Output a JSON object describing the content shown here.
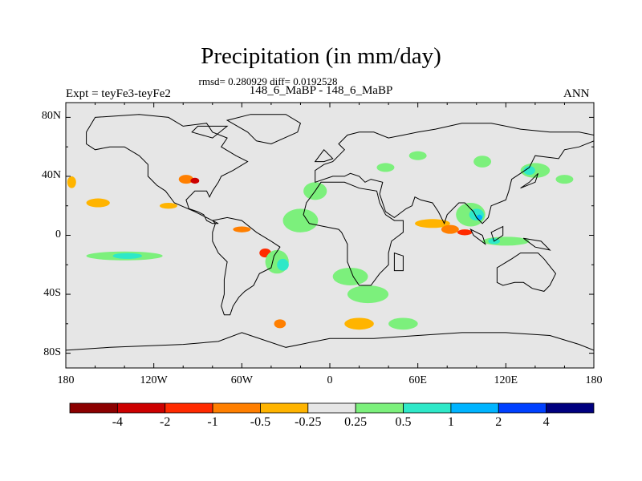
{
  "header": {
    "title": "Precipitation (in mm/day)",
    "stats": "rmsd= 0.280929 diff= 0.0192528",
    "case": "148_6_MaBP - 148_6_MaBP",
    "experiment": "Expt = teyFe3-teyFe2",
    "season": "ANN"
  },
  "chart_data": {
    "type": "heatmap",
    "title": "Precipitation (in mm/day)",
    "subtitle": "148_6_MaBP - 148_6_MaBP",
    "xlim": [
      -180,
      180
    ],
    "ylim": [
      -90,
      90
    ],
    "x_ticks": [
      {
        "value": -180,
        "label": "180"
      },
      {
        "value": -120,
        "label": "120W"
      },
      {
        "value": -60,
        "label": "60W"
      },
      {
        "value": 0,
        "label": "0"
      },
      {
        "value": 60,
        "label": "60E"
      },
      {
        "value": 120,
        "label": "120E"
      },
      {
        "value": 180,
        "label": "180"
      }
    ],
    "y_ticks": [
      {
        "value": 80,
        "label": "80N"
      },
      {
        "value": 40,
        "label": "40N"
      },
      {
        "value": 0,
        "label": "0"
      },
      {
        "value": -40,
        "label": "40S"
      },
      {
        "value": -80,
        "label": "80S"
      }
    ],
    "colorbar": {
      "levels": [
        "-4",
        "-2",
        "-1",
        "-0.5",
        "-0.25",
        "0.25",
        "0.5",
        "1",
        "2",
        "4"
      ],
      "colors": [
        "#8b0000",
        "#cc0000",
        "#ff2a00",
        "#ff7f00",
        "#ffb400",
        "#e6e6e6",
        "#7cf07c",
        "#2ee8c8",
        "#00b4ff",
        "#0040ff",
        "#00007f"
      ]
    },
    "background_color": "#e6e6e6",
    "anomaly_patches": [
      {
        "lon": -158,
        "lat": 22,
        "rx": 8,
        "ry": 3,
        "color": "#ffb400"
      },
      {
        "lon": -176,
        "lat": 36,
        "rx": 3,
        "ry": 4,
        "color": "#ffb400"
      },
      {
        "lon": -140,
        "lat": -14,
        "rx": 26,
        "ry": 3,
        "color": "#7cf07c"
      },
      {
        "lon": -138,
        "lat": -14,
        "rx": 10,
        "ry": 2,
        "color": "#2ee8c8"
      },
      {
        "lon": -98,
        "lat": 38,
        "rx": 5,
        "ry": 3,
        "color": "#ff7f00"
      },
      {
        "lon": -92,
        "lat": 37,
        "rx": 3,
        "ry": 2,
        "color": "#cc0000"
      },
      {
        "lon": -60,
        "lat": 4,
        "rx": 6,
        "ry": 2,
        "color": "#ff7f00"
      },
      {
        "lon": -44,
        "lat": -12,
        "rx": 4,
        "ry": 3,
        "color": "#ff2a00"
      },
      {
        "lon": -36,
        "lat": -18,
        "rx": 8,
        "ry": 8,
        "color": "#7cf07c"
      },
      {
        "lon": -32,
        "lat": -20,
        "rx": 4,
        "ry": 4,
        "color": "#2ee8c8"
      },
      {
        "lon": -20,
        "lat": 10,
        "rx": 12,
        "ry": 8,
        "color": "#7cf07c"
      },
      {
        "lon": -10,
        "lat": 30,
        "rx": 8,
        "ry": 6,
        "color": "#7cf07c"
      },
      {
        "lon": 14,
        "lat": -28,
        "rx": 12,
        "ry": 6,
        "color": "#7cf07c"
      },
      {
        "lon": 26,
        "lat": -40,
        "rx": 14,
        "ry": 6,
        "color": "#7cf07c"
      },
      {
        "lon": 20,
        "lat": -60,
        "rx": 10,
        "ry": 4,
        "color": "#ffb400"
      },
      {
        "lon": 50,
        "lat": -60,
        "rx": 10,
        "ry": 4,
        "color": "#7cf07c"
      },
      {
        "lon": 70,
        "lat": 8,
        "rx": 12,
        "ry": 3,
        "color": "#ffb400"
      },
      {
        "lon": 82,
        "lat": 4,
        "rx": 6,
        "ry": 3,
        "color": "#ff7f00"
      },
      {
        "lon": 92,
        "lat": 2,
        "rx": 5,
        "ry": 2,
        "color": "#ff2a00"
      },
      {
        "lon": 96,
        "lat": 14,
        "rx": 10,
        "ry": 8,
        "color": "#7cf07c"
      },
      {
        "lon": 100,
        "lat": 14,
        "rx": 5,
        "ry": 4,
        "color": "#2ee8c8"
      },
      {
        "lon": 102,
        "lat": 12,
        "rx": 2,
        "ry": 2,
        "color": "#00b4ff"
      },
      {
        "lon": 120,
        "lat": -4,
        "rx": 16,
        "ry": 3,
        "color": "#7cf07c"
      },
      {
        "lon": 112,
        "lat": -4,
        "rx": 4,
        "ry": 2,
        "color": "#2ee8c8"
      },
      {
        "lon": 140,
        "lat": 44,
        "rx": 10,
        "ry": 5,
        "color": "#7cf07c"
      },
      {
        "lon": 136,
        "lat": 44,
        "rx": 4,
        "ry": 3,
        "color": "#2ee8c8"
      },
      {
        "lon": 160,
        "lat": 38,
        "rx": 6,
        "ry": 3,
        "color": "#7cf07c"
      },
      {
        "lon": -34,
        "lat": -60,
        "rx": 4,
        "ry": 3,
        "color": "#ff7f00"
      },
      {
        "lon": 38,
        "lat": 46,
        "rx": 6,
        "ry": 3,
        "color": "#7cf07c"
      },
      {
        "lon": 60,
        "lat": 54,
        "rx": 6,
        "ry": 3,
        "color": "#7cf07c"
      },
      {
        "lon": 104,
        "lat": 50,
        "rx": 6,
        "ry": 4,
        "color": "#7cf07c"
      },
      {
        "lon": -110,
        "lat": 20,
        "rx": 6,
        "ry": 2,
        "color": "#ffb400"
      }
    ],
    "land_outlines": [
      [
        [
          -160,
          80
        ],
        [
          -130,
          82
        ],
        [
          -110,
          80
        ],
        [
          -100,
          74
        ],
        [
          -84,
          76
        ],
        [
          -80,
          70
        ],
        [
          -70,
          66
        ],
        [
          -74,
          60
        ],
        [
          -64,
          54
        ],
        [
          -56,
          50
        ],
        [
          -66,
          44
        ],
        [
          -74,
          40
        ],
        [
          -76,
          36
        ],
        [
          -80,
          30
        ],
        [
          -82,
          26
        ],
        [
          -84,
          30
        ],
        [
          -92,
          30
        ],
        [
          -98,
          24
        ],
        [
          -96,
          18
        ],
        [
          -90,
          16
        ],
        [
          -86,
          14
        ],
        [
          -84,
          10
        ],
        [
          -80,
          8
        ],
        [
          -76,
          8
        ],
        [
          -92,
          16
        ],
        [
          -106,
          22
        ],
        [
          -112,
          30
        ],
        [
          -118,
          34
        ],
        [
          -124,
          40
        ],
        [
          -124,
          48
        ],
        [
          -130,
          54
        ],
        [
          -140,
          60
        ],
        [
          -150,
          60
        ],
        [
          -160,
          58
        ],
        [
          -166,
          62
        ],
        [
          -166,
          70
        ],
        [
          -160,
          80
        ]
      ],
      [
        [
          -80,
          10
        ],
        [
          -70,
          12
        ],
        [
          -60,
          10
        ],
        [
          -50,
          2
        ],
        [
          -40,
          -4
        ],
        [
          -34,
          -8
        ],
        [
          -38,
          -14
        ],
        [
          -40,
          -22
        ],
        [
          -48,
          -26
        ],
        [
          -52,
          -34
        ],
        [
          -58,
          -38
        ],
        [
          -62,
          -42
        ],
        [
          -66,
          -48
        ],
        [
          -68,
          -54
        ],
        [
          -72,
          -54
        ],
        [
          -74,
          -48
        ],
        [
          -72,
          -40
        ],
        [
          -72,
          -30
        ],
        [
          -70,
          -18
        ],
        [
          -76,
          -12
        ],
        [
          -80,
          -4
        ],
        [
          -80,
          2
        ],
        [
          -78,
          8
        ],
        [
          -80,
          10
        ]
      ],
      [
        [
          -18,
          14
        ],
        [
          -16,
          22
        ],
        [
          -10,
          30
        ],
        [
          -6,
          36
        ],
        [
          10,
          36
        ],
        [
          20,
          32
        ],
        [
          32,
          30
        ],
        [
          34,
          22
        ],
        [
          38,
          14
        ],
        [
          44,
          10
        ],
        [
          50,
          10
        ],
        [
          50,
          2
        ],
        [
          42,
          -4
        ],
        [
          40,
          -12
        ],
        [
          40,
          -20
        ],
        [
          34,
          -26
        ],
        [
          28,
          -34
        ],
        [
          20,
          -34
        ],
        [
          16,
          -28
        ],
        [
          12,
          -18
        ],
        [
          12,
          -6
        ],
        [
          8,
          2
        ],
        [
          6,
          4
        ],
        [
          -4,
          6
        ],
        [
          -14,
          8
        ],
        [
          -18,
          14
        ]
      ],
      [
        [
          -10,
          36
        ],
        [
          -10,
          44
        ],
        [
          -4,
          48
        ],
        [
          2,
          50
        ],
        [
          6,
          54
        ],
        [
          10,
          58
        ],
        [
          6,
          62
        ],
        [
          12,
          68
        ],
        [
          20,
          70
        ],
        [
          30,
          70
        ],
        [
          40,
          66
        ],
        [
          50,
          68
        ],
        [
          60,
          70
        ],
        [
          72,
          72
        ],
        [
          90,
          76
        ],
        [
          110,
          76
        ],
        [
          130,
          72
        ],
        [
          150,
          70
        ],
        [
          170,
          70
        ],
        [
          180,
          68
        ],
        [
          180,
          64
        ],
        [
          170,
          60
        ],
        [
          160,
          58
        ],
        [
          156,
          52
        ],
        [
          140,
          54
        ],
        [
          136,
          46
        ],
        [
          130,
          42
        ],
        [
          124,
          38
        ],
        [
          122,
          30
        ],
        [
          120,
          24
        ],
        [
          110,
          20
        ],
        [
          108,
          12
        ],
        [
          104,
          8
        ],
        [
          100,
          12
        ],
        [
          98,
          16
        ],
        [
          92,
          22
        ],
        [
          88,
          22
        ],
        [
          80,
          14
        ],
        [
          78,
          8
        ],
        [
          74,
          16
        ],
        [
          70,
          22
        ],
        [
          62,
          24
        ],
        [
          58,
          26
        ],
        [
          56,
          20
        ],
        [
          52,
          18
        ],
        [
          44,
          12
        ],
        [
          38,
          16
        ],
        [
          34,
          28
        ],
        [
          36,
          36
        ],
        [
          28,
          38
        ],
        [
          24,
          36
        ],
        [
          20,
          40
        ],
        [
          14,
          42
        ],
        [
          10,
          40
        ],
        [
          2,
          40
        ],
        [
          -10,
          36
        ]
      ],
      [
        [
          114,
          -22
        ],
        [
          114,
          -32
        ],
        [
          118,
          -34
        ],
        [
          126,
          -32
        ],
        [
          132,
          -32
        ],
        [
          138,
          -36
        ],
        [
          146,
          -38
        ],
        [
          150,
          -34
        ],
        [
          154,
          -26
        ],
        [
          146,
          -16
        ],
        [
          142,
          -12
        ],
        [
          136,
          -12
        ],
        [
          130,
          -12
        ],
        [
          124,
          -16
        ],
        [
          114,
          -22
        ]
      ],
      [
        [
          -60,
          -66
        ],
        [
          -30,
          -76
        ],
        [
          0,
          -70
        ],
        [
          30,
          -70
        ],
        [
          60,
          -68
        ],
        [
          90,
          -66
        ],
        [
          120,
          -66
        ],
        [
          150,
          -68
        ],
        [
          170,
          -74
        ],
        [
          180,
          -78
        ],
        [
          180,
          -90
        ],
        [
          -180,
          -90
        ],
        [
          -180,
          -78
        ],
        [
          -150,
          -76
        ],
        [
          -100,
          -74
        ],
        [
          -76,
          -72
        ],
        [
          -60,
          -66
        ]
      ],
      [
        [
          -54,
          82
        ],
        [
          -30,
          82
        ],
        [
          -20,
          76
        ],
        [
          -22,
          70
        ],
        [
          -40,
          62
        ],
        [
          -50,
          64
        ],
        [
          -56,
          70
        ],
        [
          -70,
          78
        ],
        [
          -54,
          82
        ]
      ],
      [
        [
          44,
          -12
        ],
        [
          50,
          -14
        ],
        [
          50,
          -24
        ],
        [
          44,
          -24
        ],
        [
          44,
          -12
        ]
      ],
      [
        [
          -10,
          50
        ],
        [
          -4,
          58
        ],
        [
          2,
          52
        ],
        [
          -4,
          50
        ],
        [
          -10,
          50
        ]
      ],
      [
        [
          130,
          32
        ],
        [
          140,
          36
        ],
        [
          142,
          42
        ],
        [
          136,
          36
        ],
        [
          130,
          32
        ]
      ],
      [
        [
          96,
          4
        ],
        [
          104,
          0
        ],
        [
          106,
          -6
        ],
        [
          98,
          0
        ],
        [
          96,
          4
        ]
      ],
      [
        [
          110,
          2
        ],
        [
          118,
          6
        ],
        [
          118,
          0
        ],
        [
          112,
          -4
        ],
        [
          110,
          2
        ]
      ],
      [
        [
          132,
          -2
        ],
        [
          144,
          -4
        ],
        [
          150,
          -10
        ],
        [
          140,
          -8
        ],
        [
          132,
          -2
        ]
      ],
      [
        [
          -90,
          74
        ],
        [
          -70,
          74
        ],
        [
          -80,
          66
        ],
        [
          -94,
          70
        ],
        [
          -90,
          74
        ]
      ]
    ]
  }
}
